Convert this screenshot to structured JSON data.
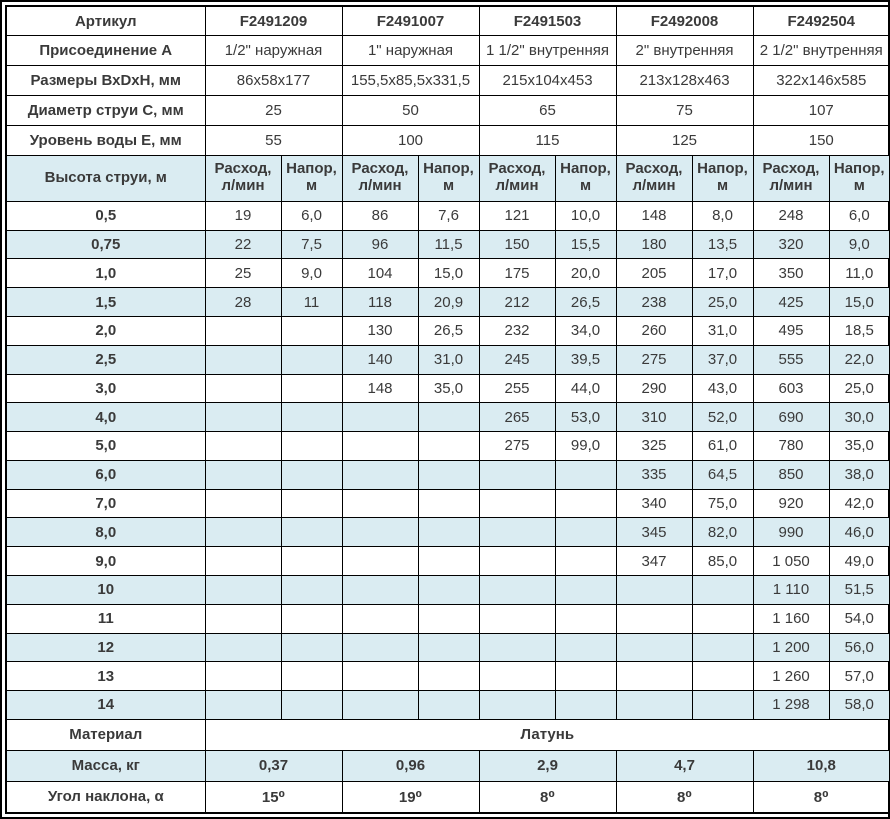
{
  "colors": {
    "article_blue": "#1c3ba5",
    "row_shade": "#daecf2",
    "border": "#000000"
  },
  "table": {
    "spec_rows": [
      {
        "label": "Артикул",
        "values": [
          "F2491209",
          "F2491007",
          "F2491503",
          "F2492008",
          "F2492504"
        ]
      },
      {
        "label": "Присоединение A",
        "values": [
          "1/2\" наружная",
          "1\" наружная",
          "1 1/2\" внутренняя",
          "2\" внутренняя",
          "2 1/2\" внутренняя"
        ]
      },
      {
        "label": "Размеры ВхDхН, мм",
        "values": [
          "86х58х177",
          "155,5х85,5х331,5",
          "215х104х453",
          "213х128х463",
          "322х146х585"
        ]
      },
      {
        "label": "Диаметр струи С, мм",
        "values": [
          "25",
          "50",
          "65",
          "75",
          "107"
        ]
      },
      {
        "label": "Уровень воды Е, мм",
        "values": [
          "55",
          "100",
          "115",
          "125",
          "150"
        ]
      }
    ],
    "jet_header": {
      "label": "Высота струи, м",
      "flow_label": "Расход,\nл/мин",
      "head_label": "Напор,\nм"
    },
    "jet_rows": [
      {
        "height": "0,5",
        "cells": [
          "19",
          "6,0",
          "86",
          "7,6",
          "121",
          "10,0",
          "148",
          "8,0",
          "248",
          "6,0"
        ]
      },
      {
        "height": "0,75",
        "cells": [
          "22",
          "7,5",
          "96",
          "11,5",
          "150",
          "15,5",
          "180",
          "13,5",
          "320",
          "9,0"
        ]
      },
      {
        "height": "1,0",
        "cells": [
          "25",
          "9,0",
          "104",
          "15,0",
          "175",
          "20,0",
          "205",
          "17,0",
          "350",
          "11,0"
        ]
      },
      {
        "height": "1,5",
        "cells": [
          "28",
          "11",
          "118",
          "20,9",
          "212",
          "26,5",
          "238",
          "25,0",
          "425",
          "15,0"
        ]
      },
      {
        "height": "2,0",
        "cells": [
          "",
          "",
          "130",
          "26,5",
          "232",
          "34,0",
          "260",
          "31,0",
          "495",
          "18,5"
        ]
      },
      {
        "height": "2,5",
        "cells": [
          "",
          "",
          "140",
          "31,0",
          "245",
          "39,5",
          "275",
          "37,0",
          "555",
          "22,0"
        ]
      },
      {
        "height": "3,0",
        "cells": [
          "",
          "",
          "148",
          "35,0",
          "255",
          "44,0",
          "290",
          "43,0",
          "603",
          "25,0"
        ]
      },
      {
        "height": "4,0",
        "cells": [
          "",
          "",
          "",
          "",
          "265",
          "53,0",
          "310",
          "52,0",
          "690",
          "30,0"
        ]
      },
      {
        "height": "5,0",
        "cells": [
          "",
          "",
          "",
          "",
          "275",
          "99,0",
          "325",
          "61,0",
          "780",
          "35,0"
        ]
      },
      {
        "height": "6,0",
        "cells": [
          "",
          "",
          "",
          "",
          "",
          "",
          "335",
          "64,5",
          "850",
          "38,0"
        ]
      },
      {
        "height": "7,0",
        "cells": [
          "",
          "",
          "",
          "",
          "",
          "",
          "340",
          "75,0",
          "920",
          "42,0"
        ]
      },
      {
        "height": "8,0",
        "cells": [
          "",
          "",
          "",
          "",
          "",
          "",
          "345",
          "82,0",
          "990",
          "46,0"
        ]
      },
      {
        "height": "9,0",
        "cells": [
          "",
          "",
          "",
          "",
          "",
          "",
          "347",
          "85,0",
          "1 050",
          "49,0"
        ]
      },
      {
        "height": "10",
        "cells": [
          "",
          "",
          "",
          "",
          "",
          "",
          "",
          "",
          "1 110",
          "51,5"
        ]
      },
      {
        "height": "11",
        "cells": [
          "",
          "",
          "",
          "",
          "",
          "",
          "",
          "",
          "1 160",
          "54,0"
        ]
      },
      {
        "height": "12",
        "cells": [
          "",
          "",
          "",
          "",
          "",
          "",
          "",
          "",
          "1 200",
          "56,0"
        ]
      },
      {
        "height": "13",
        "cells": [
          "",
          "",
          "",
          "",
          "",
          "",
          "",
          "",
          "1 260",
          "57,0"
        ]
      },
      {
        "height": "14",
        "cells": [
          "",
          "",
          "",
          "",
          "",
          "",
          "",
          "",
          "1 298",
          "58,0"
        ]
      }
    ],
    "material_row": {
      "label": "Материал",
      "value": "Латунь"
    },
    "mass_row": {
      "label": "Масса, кг",
      "values": [
        "0,37",
        "0,96",
        "2,9",
        "4,7",
        "10,8"
      ]
    },
    "angle_row": {
      "label": "Угол наклона, α",
      "values": [
        "15⁰",
        "19⁰",
        "8⁰",
        "8⁰",
        "8⁰"
      ]
    }
  }
}
